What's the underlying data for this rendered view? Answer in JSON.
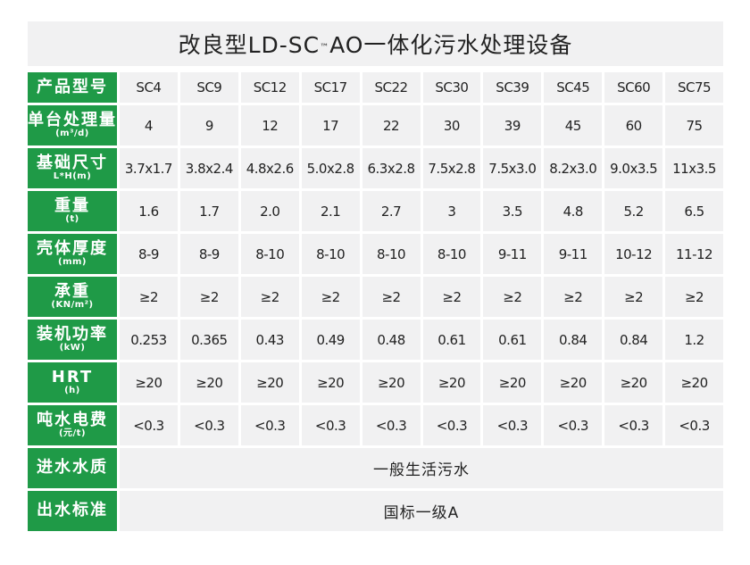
{
  "title": {
    "main": "改良型LD-SC",
    "tm": "™",
    "rest": "AO一体化污水处理设备"
  },
  "rows": [
    {
      "label": "产品型号",
      "unit": "",
      "values": [
        "SC4",
        "SC9",
        "SC12",
        "SC17",
        "SC22",
        "SC30",
        "SC39",
        "SC45",
        "SC60",
        "SC75"
      ]
    },
    {
      "label": "单台处理量",
      "unit": "(m³/d)",
      "values": [
        "4",
        "9",
        "12",
        "17",
        "22",
        "30",
        "39",
        "45",
        "60",
        "75"
      ]
    },
    {
      "label": "基础尺寸",
      "unit": "L*H(m)",
      "values": [
        "3.7x1.7",
        "3.8x2.4",
        "4.8x2.6",
        "5.0x2.8",
        "6.3x2.8",
        "7.5x2.8",
        "7.5x3.0",
        "8.2x3.0",
        "9.0x3.5",
        "11x3.5"
      ]
    },
    {
      "label": "重量",
      "unit": "(t)",
      "values": [
        "1.6",
        "1.7",
        "2.0",
        "2.1",
        "2.7",
        "3",
        "3.5",
        "4.8",
        "5.2",
        "6.5"
      ]
    },
    {
      "label": "壳体厚度",
      "unit": "(mm)",
      "values": [
        "8-9",
        "8-9",
        "8-10",
        "8-10",
        "8-10",
        "8-10",
        "9-11",
        "9-11",
        "10-12",
        "11-12"
      ]
    },
    {
      "label": "承重",
      "unit": "(KN/m²)",
      "values": [
        "≥2",
        "≥2",
        "≥2",
        "≥2",
        "≥2",
        "≥2",
        "≥2",
        "≥2",
        "≥2",
        "≥2"
      ]
    },
    {
      "label": "装机功率",
      "unit": "(kW)",
      "values": [
        "0.253",
        "0.365",
        "0.43",
        "0.49",
        "0.48",
        "0.61",
        "0.61",
        "0.84",
        "0.84",
        "1.2"
      ]
    },
    {
      "label": "HRT",
      "unit": "(h)",
      "values": [
        "≥20",
        "≥20",
        "≥20",
        "≥20",
        "≥20",
        "≥20",
        "≥20",
        "≥20",
        "≥20",
        "≥20"
      ]
    },
    {
      "label": "吨水电费",
      "unit": "(元/t)",
      "values": [
        "<0.3",
        "<0.3",
        "<0.3",
        "<0.3",
        "<0.3",
        "<0.3",
        "<0.3",
        "<0.3",
        "<0.3",
        "<0.3"
      ]
    }
  ],
  "merged": [
    {
      "label": "进水水质",
      "value": "一般生活污水"
    },
    {
      "label": "出水标准",
      "value": "国标一级A"
    }
  ],
  "colors": {
    "label_bg": "#1f9a47",
    "cell_bg": "#f1f1f2"
  }
}
